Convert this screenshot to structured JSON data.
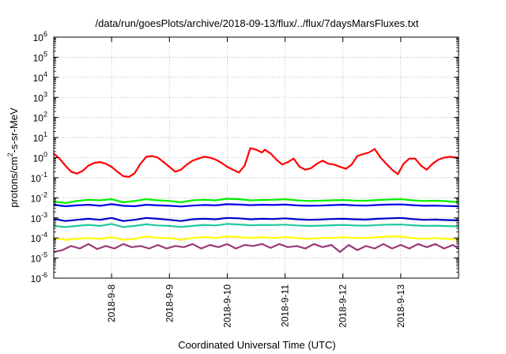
{
  "chart_data": {
    "type": "line",
    "title": "/data/run/goesPlots/archive/2018-09-13/flux/../flux/7daysMarsFluxes.txt",
    "xlabel": "Coordinated Universal Time (UTC)",
    "ylabel": {
      "main": "protons/cm",
      "sup": "2",
      "rest": "-s-sr-MeV"
    },
    "yscale": "log",
    "ylim": [
      1e-06,
      1000000.0
    ],
    "y_ticks": [
      {
        "exp": "-6",
        "value": 1e-06
      },
      {
        "exp": "-5",
        "value": 1e-05
      },
      {
        "exp": "-4",
        "value": 0.0001
      },
      {
        "exp": "-3",
        "value": 0.001
      },
      {
        "exp": "-2",
        "value": 0.01
      },
      {
        "exp": "-1",
        "value": 0.1
      },
      {
        "exp": "0",
        "value": 1
      },
      {
        "exp": "1",
        "value": 10
      },
      {
        "exp": "2",
        "value": 100
      },
      {
        "exp": "3",
        "value": 1000
      },
      {
        "exp": "4",
        "value": 10000
      },
      {
        "exp": "5",
        "value": 100000
      },
      {
        "exp": "6",
        "value": 1000000
      }
    ],
    "y_tick_base": "10",
    "xlim": [
      0,
      7
    ],
    "x_ticks": [
      {
        "label": "2018-9-8",
        "value": 1
      },
      {
        "label": "2018-9-9",
        "value": 2
      },
      {
        "label": "2018-9-10",
        "value": 3
      },
      {
        "label": "2018-9-11",
        "value": 4
      },
      {
        "label": "2018-9-12",
        "value": 5
      },
      {
        "label": "2018-9-13",
        "value": 6
      }
    ],
    "x_unit_note": "x values are days since the left edge of the plot (2018-9-7, approximately)",
    "grid": true,
    "legend": "none",
    "series": [
      {
        "color": "#ff0000",
        "x": [
          0,
          0.1,
          0.2,
          0.3,
          0.4,
          0.5,
          0.6,
          0.7,
          0.8,
          0.9,
          1.0,
          1.1,
          1.2,
          1.3,
          1.4,
          1.5,
          1.6,
          1.7,
          1.8,
          1.9,
          2.0,
          2.1,
          2.2,
          2.3,
          2.4,
          2.5,
          2.6,
          2.7,
          2.8,
          2.9,
          3.0,
          3.1,
          3.2,
          3.3,
          3.4,
          3.5,
          3.6,
          3.65,
          3.75,
          3.85,
          3.95,
          4.05,
          4.15,
          4.25,
          4.35,
          4.45,
          4.55,
          4.65,
          4.75,
          4.85,
          4.95,
          5.05,
          5.15,
          5.25,
          5.35,
          5.45,
          5.55,
          5.65,
          5.75,
          5.85,
          5.95,
          6.05,
          6.15,
          6.25,
          6.35,
          6.45,
          6.55,
          6.65,
          6.75,
          6.85,
          6.95,
          7.0
        ],
        "values": [
          1.6,
          0.9,
          0.4,
          0.2,
          0.16,
          0.22,
          0.4,
          0.55,
          0.6,
          0.5,
          0.35,
          0.2,
          0.12,
          0.11,
          0.17,
          0.5,
          1.1,
          1.2,
          1.0,
          0.6,
          0.35,
          0.2,
          0.25,
          0.45,
          0.7,
          0.9,
          1.1,
          1.0,
          0.8,
          0.55,
          0.35,
          0.25,
          0.18,
          0.4,
          3.0,
          2.5,
          1.8,
          2.5,
          1.6,
          0.8,
          0.45,
          0.6,
          0.9,
          0.35,
          0.25,
          0.3,
          0.5,
          0.7,
          0.5,
          0.45,
          0.35,
          0.28,
          0.45,
          1.2,
          1.5,
          1.8,
          2.7,
          1.0,
          0.5,
          0.25,
          0.15,
          0.5,
          0.9,
          0.9,
          0.4,
          0.25,
          0.5,
          0.8,
          1.0,
          1.1,
          1.0,
          1.0
        ]
      },
      {
        "color": "#00ee00",
        "x": [
          0,
          0.2,
          0.4,
          0.6,
          0.8,
          1.0,
          1.2,
          1.4,
          1.6,
          1.8,
          2.0,
          2.2,
          2.4,
          2.6,
          2.8,
          3.0,
          3.2,
          3.4,
          3.6,
          3.8,
          4.0,
          4.2,
          4.4,
          4.6,
          4.8,
          5.0,
          5.2,
          5.4,
          5.6,
          5.8,
          6.0,
          6.2,
          6.4,
          6.6,
          6.8,
          7.0
        ],
        "values": [
          0.0065,
          0.0055,
          0.007,
          0.008,
          0.0075,
          0.0085,
          0.006,
          0.007,
          0.0085,
          0.0075,
          0.007,
          0.006,
          0.0075,
          0.008,
          0.0075,
          0.009,
          0.0085,
          0.0075,
          0.0078,
          0.008,
          0.0085,
          0.0075,
          0.007,
          0.0072,
          0.0075,
          0.0078,
          0.0073,
          0.0072,
          0.0078,
          0.0082,
          0.0085,
          0.0075,
          0.007,
          0.0072,
          0.0068,
          0.006
        ]
      },
      {
        "color": "#0000ee",
        "x": [
          0,
          0.2,
          0.4,
          0.6,
          0.8,
          1.0,
          1.2,
          1.4,
          1.6,
          1.8,
          2.0,
          2.2,
          2.4,
          2.6,
          2.8,
          3.0,
          3.2,
          3.4,
          3.6,
          3.8,
          4.0,
          4.2,
          4.4,
          4.6,
          4.8,
          5.0,
          5.2,
          5.4,
          5.6,
          5.8,
          6.0,
          6.2,
          6.4,
          6.6,
          6.8,
          7.0
        ],
        "values": [
          0.0045,
          0.0038,
          0.0042,
          0.0045,
          0.004,
          0.0048,
          0.004,
          0.0038,
          0.0045,
          0.0042,
          0.004,
          0.0037,
          0.0041,
          0.0044,
          0.0042,
          0.0048,
          0.0046,
          0.0043,
          0.0045,
          0.0044,
          0.0046,
          0.0042,
          0.004,
          0.0041,
          0.0043,
          0.0045,
          0.0042,
          0.0041,
          0.0044,
          0.0046,
          0.0047,
          0.0043,
          0.004,
          0.0041,
          0.0039,
          0.0038
        ]
      },
      {
        "color": "#0000cc",
        "x": [
          0,
          0.2,
          0.4,
          0.6,
          0.8,
          1.0,
          1.2,
          1.4,
          1.6,
          1.8,
          2.0,
          2.2,
          2.4,
          2.6,
          2.8,
          3.0,
          3.2,
          3.4,
          3.6,
          3.8,
          4.0,
          4.2,
          4.4,
          4.6,
          4.8,
          5.0,
          5.2,
          5.4,
          5.6,
          5.8,
          6.0,
          6.2,
          6.4,
          6.6,
          6.8,
          7.0
        ],
        "values": [
          0.0009,
          0.0007,
          0.0008,
          0.0009,
          0.0008,
          0.001,
          0.0007,
          0.0008,
          0.001,
          0.0009,
          0.0008,
          0.0007,
          0.00085,
          0.0009,
          0.00085,
          0.001,
          0.00095,
          0.00085,
          0.0009,
          0.00088,
          0.00095,
          0.00085,
          0.0008,
          0.00082,
          0.00088,
          0.0009,
          0.00085,
          0.00082,
          0.0009,
          0.00095,
          0.001,
          0.00088,
          0.0008,
          0.00082,
          0.00078,
          0.00075
        ]
      },
      {
        "color": "#20c8a0",
        "x": [
          0,
          0.2,
          0.4,
          0.6,
          0.8,
          1.0,
          1.2,
          1.4,
          1.6,
          1.8,
          2.0,
          2.2,
          2.4,
          2.6,
          2.8,
          3.0,
          3.2,
          3.4,
          3.6,
          3.8,
          4.0,
          4.2,
          4.4,
          4.6,
          4.8,
          5.0,
          5.2,
          5.4,
          5.6,
          5.8,
          6.0,
          6.2,
          6.4,
          6.6,
          6.8,
          7.0
        ],
        "values": [
          0.0004,
          0.00035,
          0.0004,
          0.00045,
          0.0004,
          0.0005,
          0.00035,
          0.0004,
          0.00048,
          0.00042,
          0.0004,
          0.00035,
          0.0004,
          0.00045,
          0.00042,
          0.0005,
          0.00047,
          0.00043,
          0.00045,
          0.00044,
          0.00046,
          0.00042,
          0.0004,
          0.00041,
          0.00043,
          0.00045,
          0.00042,
          0.00041,
          0.00044,
          0.00046,
          0.00047,
          0.00043,
          0.0004,
          0.00041,
          0.00039,
          0.00038
        ]
      },
      {
        "color": "#ffff00",
        "x": [
          0,
          0.2,
          0.4,
          0.6,
          0.8,
          1.0,
          1.2,
          1.4,
          1.6,
          1.8,
          2.0,
          2.2,
          2.4,
          2.6,
          2.8,
          3.0,
          3.2,
          3.4,
          3.6,
          3.8,
          4.0,
          4.2,
          4.4,
          4.6,
          4.8,
          5.0,
          5.2,
          5.4,
          5.6,
          5.8,
          6.0,
          6.2,
          6.4,
          6.6,
          6.8,
          7.0
        ],
        "values": [
          0.0001,
          8e-05,
          9e-05,
          0.0001,
          9e-05,
          0.00011,
          8e-05,
          9e-05,
          0.00012,
          0.0001,
          0.0001,
          8e-05,
          0.0001,
          0.00011,
          0.0001,
          0.00012,
          0.00011,
          0.0001,
          0.00011,
          0.0001,
          0.00011,
          0.0001,
          9e-05,
          0.0001,
          0.0001,
          0.00011,
          0.0001,
          0.0001,
          0.00011,
          0.00012,
          0.00012,
          0.0001,
          9e-05,
          0.0001,
          9e-05,
          8e-05
        ]
      },
      {
        "color": "#9a3a7a",
        "x": [
          0,
          0.15,
          0.3,
          0.45,
          0.6,
          0.75,
          0.9,
          1.05,
          1.2,
          1.35,
          1.5,
          1.65,
          1.8,
          1.95,
          2.1,
          2.25,
          2.4,
          2.55,
          2.7,
          2.85,
          3.0,
          3.15,
          3.3,
          3.45,
          3.6,
          3.75,
          3.9,
          4.05,
          4.2,
          4.35,
          4.5,
          4.65,
          4.8,
          4.95,
          5.1,
          5.25,
          5.4,
          5.55,
          5.7,
          5.85,
          6.0,
          6.15,
          6.3,
          6.45,
          6.6,
          6.75,
          6.9,
          7.0
        ],
        "values": [
          2e-05,
          2.5e-05,
          4e-05,
          3e-05,
          5e-05,
          2.8e-05,
          4e-05,
          3e-05,
          5e-05,
          3.5e-05,
          4e-05,
          3e-05,
          4.5e-05,
          3e-05,
          4e-05,
          3.5e-05,
          5e-05,
          3e-05,
          4.5e-05,
          3.5e-05,
          5e-05,
          3e-05,
          4.5e-05,
          4e-05,
          5e-05,
          3.2e-05,
          5e-05,
          3.5e-05,
          4e-05,
          3e-05,
          5e-05,
          3.5e-05,
          4.5e-05,
          2e-05,
          4.5e-05,
          2.5e-05,
          4e-05,
          3e-05,
          5e-05,
          3e-05,
          4.5e-05,
          3e-05,
          5e-05,
          3.5e-05,
          5e-05,
          3e-05,
          4.5e-05,
          3e-05
        ]
      }
    ]
  }
}
